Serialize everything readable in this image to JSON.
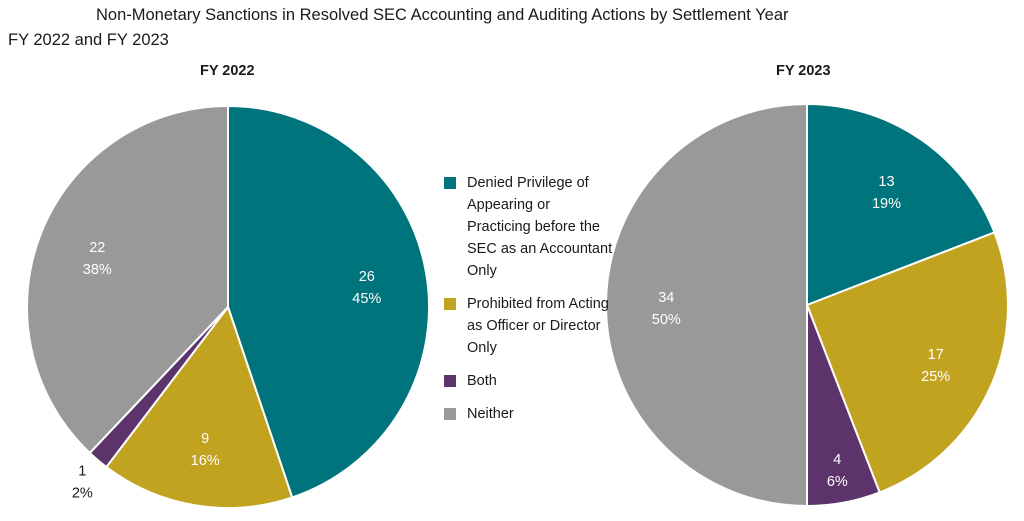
{
  "title": "Non-Monetary Sanctions in Resolved SEC Accounting and Auditing Actions by Settlement Year",
  "subtitle": "FY 2022 and FY 2023",
  "colors": {
    "denied": "#00747c",
    "prohibited": "#c2a320",
    "both": "#5c336b",
    "neither": "#999999"
  },
  "legend": [
    {
      "label": "Denied Privilege of Appearing or Practicing before the SEC as an Accountant Only",
      "color": "#00747c"
    },
    {
      "label": "Prohibited from Acting as Officer or Director Only",
      "color": "#c2a320"
    },
    {
      "label": "Both",
      "color": "#5c336b"
    },
    {
      "label": "Neither",
      "color": "#999999"
    }
  ],
  "chart_data": [
    {
      "type": "pie",
      "title": "FY 2022",
      "slices": [
        {
          "name": "Denied Privilege of Appearing or Practicing before the SEC as an Accountant Only",
          "value": 26,
          "percent": "45%",
          "color": "#00747c"
        },
        {
          "name": "Prohibited from Acting as Officer or Director Only",
          "value": 9,
          "percent": "16%",
          "color": "#c2a320"
        },
        {
          "name": "Both",
          "value": 1,
          "percent": "2%",
          "color": "#5c336b"
        },
        {
          "name": "Neither",
          "value": 22,
          "percent": "38%",
          "color": "#999999"
        }
      ]
    },
    {
      "type": "pie",
      "title": "FY 2023",
      "slices": [
        {
          "name": "Denied Privilege of Appearing or Practicing before the SEC as an Accountant Only",
          "value": 13,
          "percent": "19%",
          "color": "#00747c"
        },
        {
          "name": "Prohibited from Acting as Officer or Director Only",
          "value": 17,
          "percent": "25%",
          "color": "#c2a320"
        },
        {
          "name": "Both",
          "value": 4,
          "percent": "6%",
          "color": "#5c336b"
        },
        {
          "name": "Neither",
          "value": 34,
          "percent": "50%",
          "color": "#999999"
        }
      ]
    }
  ]
}
